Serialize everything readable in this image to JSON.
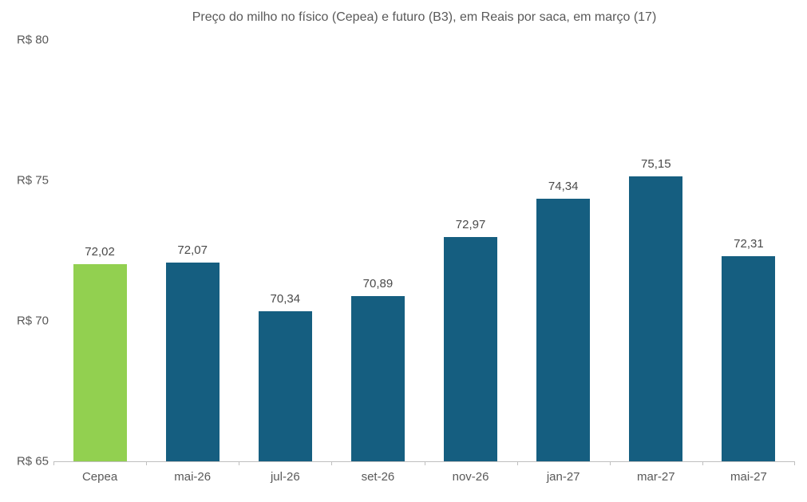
{
  "chart_data": {
    "type": "bar",
    "title": "Preço do milho no físico (Cepea) e futuro (B3), em Reais por saca, em março (17)",
    "categories": [
      "Cepea",
      "mai-26",
      "jul-26",
      "set-26",
      "nov-26",
      "jan-27",
      "mar-27",
      "mai-27"
    ],
    "values": [
      72.02,
      72.07,
      70.34,
      70.89,
      72.97,
      74.34,
      75.15,
      72.31
    ],
    "data_labels": [
      "72,02",
      "72,07",
      "70,34",
      "70,89",
      "72,97",
      "74,34",
      "75,15",
      "72,31"
    ],
    "bar_colors": [
      "#92D050",
      "#155E80",
      "#155E80",
      "#155E80",
      "#155E80",
      "#155E80",
      "#155E80",
      "#155E80"
    ],
    "highlight_category": "Cepea",
    "xlabel": "",
    "ylabel": "",
    "ylim": [
      65,
      80
    ],
    "y_ticks": [
      {
        "value": 80,
        "label": "R$ 80"
      },
      {
        "value": 75,
        "label": "R$ 75"
      },
      {
        "value": 70,
        "label": "R$ 70"
      },
      {
        "value": 65,
        "label": "R$ 65"
      }
    ],
    "grid": false,
    "legend": false
  },
  "styles": {
    "background": "#FFFFFF",
    "title_color": "#595959",
    "axis_line_color": "#BFBFBF",
    "axis_tick_label_color": "#595959",
    "data_label_color": "#4A4A4A",
    "highlight_bar_color": "#92D050",
    "default_bar_color": "#155E80"
  }
}
